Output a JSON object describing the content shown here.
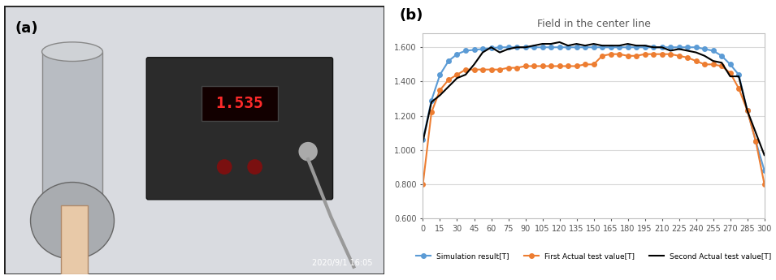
{
  "photo": {
    "label": "(a)",
    "display": "1.535",
    "timestamp": "2020/9/1 16:05"
  },
  "chart_data": {
    "type": "line",
    "title": "Field in the center line",
    "annotations": [
      "(b)"
    ],
    "x": [
      0,
      7.5,
      15,
      22.5,
      30,
      37.5,
      45,
      52.5,
      60,
      67.5,
      75,
      82.5,
      90,
      97.5,
      105,
      112.5,
      120,
      127.5,
      135,
      142.5,
      150,
      157.5,
      165,
      172.5,
      180,
      187.5,
      195,
      202.5,
      210,
      217.5,
      225,
      232.5,
      240,
      247.5,
      255,
      262.5,
      270,
      277.5,
      285,
      292.5,
      300
    ],
    "series": [
      {
        "name": "Simulation result[T]",
        "color": "#5b9bd5",
        "marker": "o",
        "line_style": "solid",
        "values": [
          1.06,
          1.29,
          1.44,
          1.52,
          1.56,
          1.58,
          1.585,
          1.59,
          1.595,
          1.6,
          1.6,
          1.6,
          1.6,
          1.6,
          1.6,
          1.6,
          1.6,
          1.6,
          1.6,
          1.6,
          1.6,
          1.6,
          1.6,
          1.6,
          1.6,
          1.6,
          1.6,
          1.6,
          1.6,
          1.6,
          1.6,
          1.6,
          1.6,
          1.59,
          1.58,
          1.55,
          1.5,
          1.44,
          1.23,
          1.05,
          0.88
        ]
      },
      {
        "name": "First Actual test value[T]",
        "color": "#ed7d31",
        "marker": "o",
        "line_style": "solid",
        "values": [
          0.8,
          1.22,
          1.35,
          1.41,
          1.44,
          1.47,
          1.47,
          1.47,
          1.47,
          1.47,
          1.48,
          1.48,
          1.49,
          1.49,
          1.49,
          1.49,
          1.49,
          1.49,
          1.49,
          1.5,
          1.5,
          1.55,
          1.56,
          1.56,
          1.55,
          1.55,
          1.56,
          1.56,
          1.56,
          1.56,
          1.55,
          1.54,
          1.52,
          1.5,
          1.5,
          1.49,
          1.45,
          1.36,
          1.23,
          1.05,
          0.8
        ]
      },
      {
        "name": "Second Actual test value[T]",
        "color": "#000000",
        "marker": "none",
        "line_style": "solid",
        "values": [
          1.05,
          1.28,
          1.32,
          1.37,
          1.42,
          1.44,
          1.5,
          1.57,
          1.6,
          1.57,
          1.59,
          1.6,
          1.6,
          1.61,
          1.62,
          1.62,
          1.63,
          1.61,
          1.62,
          1.61,
          1.62,
          1.61,
          1.61,
          1.61,
          1.62,
          1.61,
          1.61,
          1.6,
          1.6,
          1.58,
          1.59,
          1.58,
          1.57,
          1.55,
          1.52,
          1.51,
          1.43,
          1.43,
          1.23,
          1.1,
          0.97
        ]
      }
    ],
    "xlim": [
      0,
      300
    ],
    "xticks": [
      0,
      15,
      30,
      45,
      60,
      75,
      90,
      105,
      120,
      135,
      150,
      165,
      180,
      195,
      210,
      225,
      240,
      255,
      270,
      285,
      300
    ],
    "ylim": [
      0.6,
      1.68
    ],
    "yticks": [
      {
        "value": 0.6,
        "label": "0.600"
      },
      {
        "value": 0.8,
        "label": "0.800"
      },
      {
        "value": 1.0,
        "label": "1.000"
      },
      {
        "value": 1.2,
        "label": "1.200"
      },
      {
        "value": 1.4,
        "label": "1.400"
      },
      {
        "value": 1.6,
        "label": "1.600"
      }
    ],
    "grid": true,
    "legend": "lower center"
  }
}
